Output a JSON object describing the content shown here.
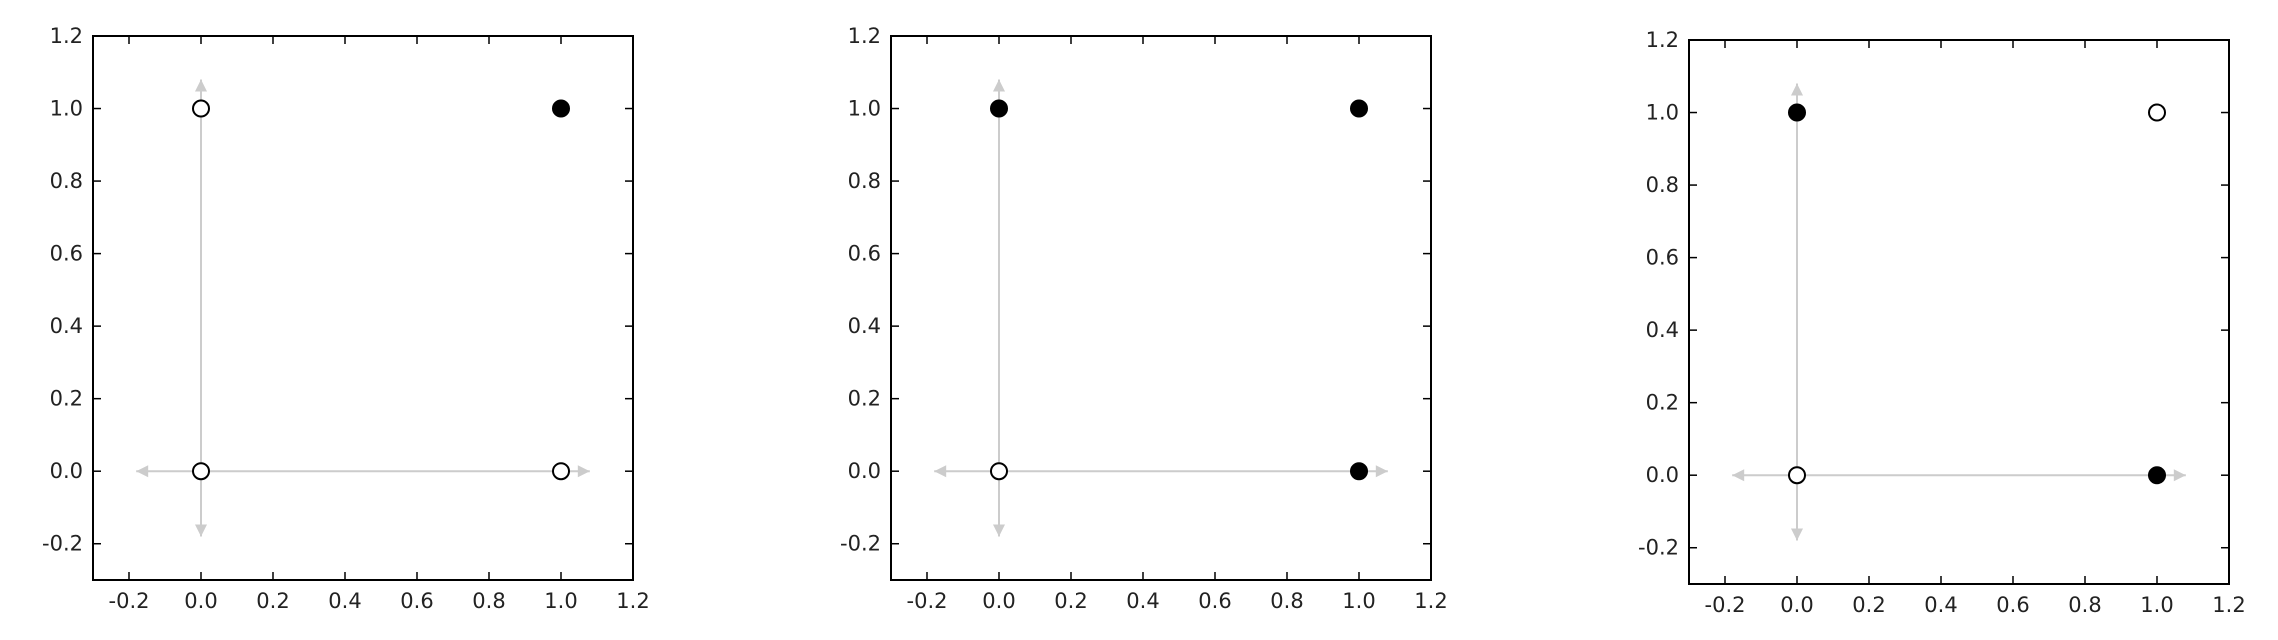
{
  "chart_data": [
    {
      "type": "scatter",
      "xlim": [
        -0.3,
        1.2
      ],
      "ylim": [
        -0.3,
        1.2
      ],
      "xticks": [
        "-0.2",
        "0.0",
        "0.2",
        "0.4",
        "0.6",
        "0.8",
        "1.0",
        "1.2"
      ],
      "yticks": [
        "-0.2",
        "0.0",
        "0.2",
        "0.4",
        "0.6",
        "0.8",
        "1.0",
        "1.2"
      ],
      "grid": false,
      "axis_arrows": {
        "x": [
          -0.18,
          1.08
        ],
        "y": [
          -0.18,
          1.08
        ],
        "color": "#cccccc"
      },
      "points": [
        {
          "x": 0,
          "y": 0,
          "filled": false
        },
        {
          "x": 0,
          "y": 1,
          "filled": false
        },
        {
          "x": 1,
          "y": 0,
          "filled": false
        },
        {
          "x": 1,
          "y": 1,
          "filled": true
        }
      ]
    },
    {
      "type": "scatter",
      "xlim": [
        -0.3,
        1.2
      ],
      "ylim": [
        -0.3,
        1.2
      ],
      "xticks": [
        "-0.2",
        "0.0",
        "0.2",
        "0.4",
        "0.6",
        "0.8",
        "1.0",
        "1.2"
      ],
      "yticks": [
        "-0.2",
        "0.0",
        "0.2",
        "0.4",
        "0.6",
        "0.8",
        "1.0",
        "1.2"
      ],
      "grid": false,
      "axis_arrows": {
        "x": [
          -0.18,
          1.08
        ],
        "y": [
          -0.18,
          1.08
        ],
        "color": "#cccccc"
      },
      "points": [
        {
          "x": 0,
          "y": 0,
          "filled": false
        },
        {
          "x": 0,
          "y": 1,
          "filled": true
        },
        {
          "x": 1,
          "y": 0,
          "filled": true
        },
        {
          "x": 1,
          "y": 1,
          "filled": true
        }
      ]
    },
    {
      "type": "scatter",
      "xlim": [
        -0.3,
        1.2
      ],
      "ylim": [
        -0.3,
        1.2
      ],
      "xticks": [
        "-0.2",
        "0.0",
        "0.2",
        "0.4",
        "0.6",
        "0.8",
        "1.0",
        "1.2"
      ],
      "yticks": [
        "-0.2",
        "0.0",
        "0.2",
        "0.4",
        "0.6",
        "0.8",
        "1.0",
        "1.2"
      ],
      "grid": false,
      "axis_arrows": {
        "x": [
          -0.18,
          1.08
        ],
        "y": [
          -0.18,
          1.08
        ],
        "color": "#cccccc"
      },
      "points": [
        {
          "x": 0,
          "y": 0,
          "filled": false
        },
        {
          "x": 0,
          "y": 1,
          "filled": true
        },
        {
          "x": 1,
          "y": 0,
          "filled": true
        },
        {
          "x": 1,
          "y": 1,
          "filled": false
        }
      ]
    }
  ]
}
